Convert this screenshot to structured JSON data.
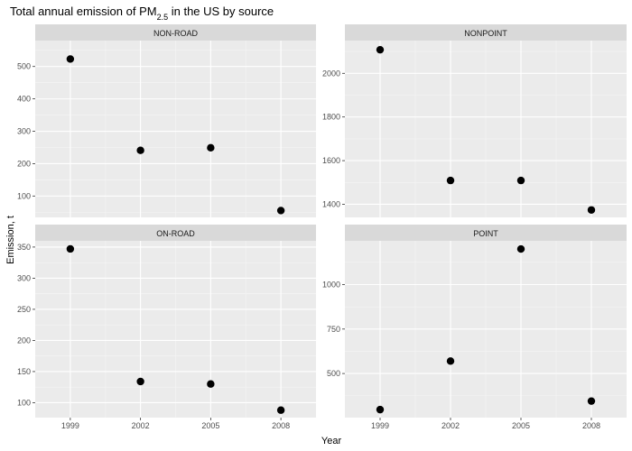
{
  "chart_data": {
    "type": "scatter",
    "title": {
      "prefix": "Total annual emission of PM",
      "subscript": "2.5",
      "suffix": " in the US by source"
    },
    "xlabel": "Year",
    "ylabel": "Emission, t",
    "x": [
      1999,
      2002,
      2005,
      2008
    ],
    "x_ticks": [
      "1999",
      "2002",
      "2005",
      "2008"
    ],
    "x_range": [
      1997.5,
      2009.5
    ],
    "grid": true,
    "panels": [
      {
        "name": "NON-ROAD",
        "values": [
          523,
          241,
          249,
          55
        ],
        "y_ticks": [
          100,
          200,
          300,
          400,
          500
        ],
        "y_range": [
          34,
          580
        ]
      },
      {
        "name": "NONPOINT",
        "values": [
          2108,
          1509,
          1509,
          1374
        ],
        "y_ticks": [
          1400,
          1600,
          1800,
          2000
        ],
        "y_range": [
          1340,
          2150
        ]
      },
      {
        "name": "ON-ROAD",
        "values": [
          347,
          134,
          130,
          88
        ],
        "y_ticks": [
          100,
          150,
          200,
          250,
          300,
          350
        ],
        "y_range": [
          76,
          360
        ]
      },
      {
        "name": "POINT",
        "values": [
          297,
          570,
          1200,
          345
        ],
        "y_ticks": [
          500,
          750,
          1000
        ],
        "y_range": [
          252,
          1246
        ]
      }
    ]
  }
}
